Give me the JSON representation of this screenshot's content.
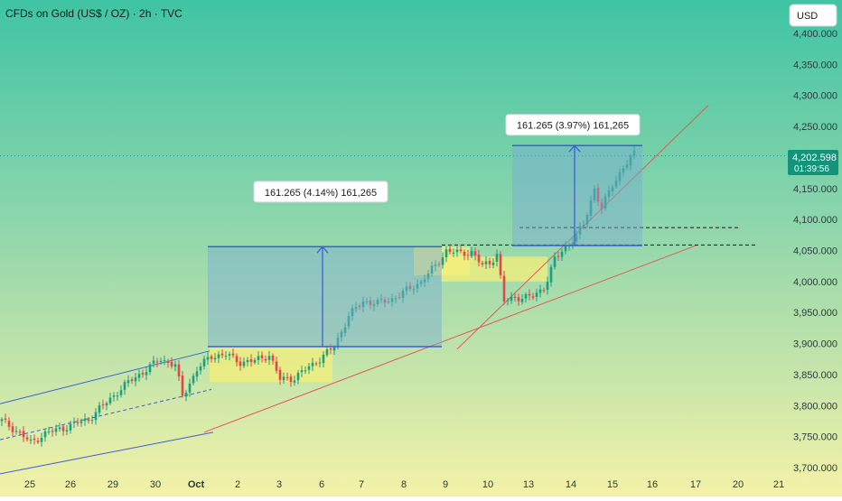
{
  "header": {
    "title": "CFDs on Gold (US$ / OZ) · 2h · TVC",
    "currency": "USD"
  },
  "price_tag": {
    "price": "4,202.598",
    "countdown": "01:39:56"
  },
  "colors": {
    "up": "#1f9e7f",
    "down": "#e2474a",
    "channel": "#3b5fd6",
    "trend": "#e05a5a",
    "measure_fill": "#7aaad8",
    "zone_fill": "#f5ef7a",
    "tag_bg": "#14937b"
  },
  "measurements": [
    {
      "label": "161.265 (4.14%) 161,265"
    },
    {
      "label": "161.265 (3.97%) 161,265"
    }
  ],
  "chart_data": {
    "type": "candlestick",
    "title": "CFDs on Gold (US$ / OZ) · 2h · TVC",
    "ylim": [
      3685,
      4440
    ],
    "y_ticks": [
      3700,
      3750,
      3800,
      3850,
      3900,
      3950,
      4000,
      4050,
      4100,
      4150,
      4200,
      4250,
      4300,
      4350,
      4400
    ],
    "y_tick_labels": [
      "3,700.000",
      "3,750.000",
      "3,800.000",
      "3,850.000",
      "3,900.000",
      "3,950.000",
      "4,000.000",
      "4,050.000",
      "4,100.000",
      "4,150.000",
      "4,200.000",
      "4,250.000",
      "4,300.000",
      "4,350.000",
      "4,400.000"
    ],
    "x_tick_labels": [
      "25",
      "26",
      "29",
      "30",
      "Oct",
      "2",
      "3",
      "6",
      "7",
      "8",
      "9",
      "10",
      "13",
      "14",
      "15",
      "16",
      "17",
      "20",
      "21"
    ],
    "last_price": 4202.598,
    "anchor_prices": [
      [
        0,
        3775
      ],
      [
        4,
        3760
      ],
      [
        8,
        3740
      ],
      [
        12,
        3755
      ],
      [
        16,
        3762
      ],
      [
        20,
        3770
      ],
      [
        24,
        3778
      ],
      [
        28,
        3800
      ],
      [
        32,
        3822
      ],
      [
        36,
        3842
      ],
      [
        40,
        3858
      ],
      [
        44,
        3875
      ],
      [
        48,
        3865
      ],
      [
        50,
        3815
      ],
      [
        54,
        3858
      ],
      [
        58,
        3880
      ],
      [
        62,
        3882
      ],
      [
        66,
        3870
      ],
      [
        70,
        3872
      ],
      [
        74,
        3882
      ],
      [
        77,
        3842
      ],
      [
        81,
        3845
      ],
      [
        85,
        3862
      ],
      [
        89,
        3880
      ],
      [
        92,
        3895
      ],
      [
        96,
        3945
      ],
      [
        100,
        3968
      ],
      [
        104,
        3965
      ],
      [
        108,
        3972
      ],
      [
        112,
        3985
      ],
      [
        116,
        4000
      ],
      [
        120,
        4025
      ],
      [
        123,
        4050
      ],
      [
        127,
        4045
      ],
      [
        130,
        4048
      ],
      [
        133,
        4025
      ],
      [
        135,
        4030
      ],
      [
        137,
        4045
      ],
      [
        139,
        3968
      ],
      [
        143,
        3975
      ],
      [
        147,
        3975
      ],
      [
        150,
        3990
      ],
      [
        153,
        4035
      ],
      [
        157,
        4062
      ],
      [
        161,
        4090
      ],
      [
        164,
        4150
      ],
      [
        166,
        4118
      ],
      [
        169,
        4155
      ],
      [
        172,
        4185
      ],
      [
        175,
        4205
      ]
    ],
    "annotations": [
      {
        "type": "price_range",
        "label": "161.265 (4.14%) 161,265",
        "from": 3895,
        "to": 4056.265
      },
      {
        "type": "price_range",
        "label": "161.265 (3.97%) 161,265",
        "from": 4058,
        "to": 4219.265
      }
    ],
    "grid": false,
    "legend": "none"
  }
}
